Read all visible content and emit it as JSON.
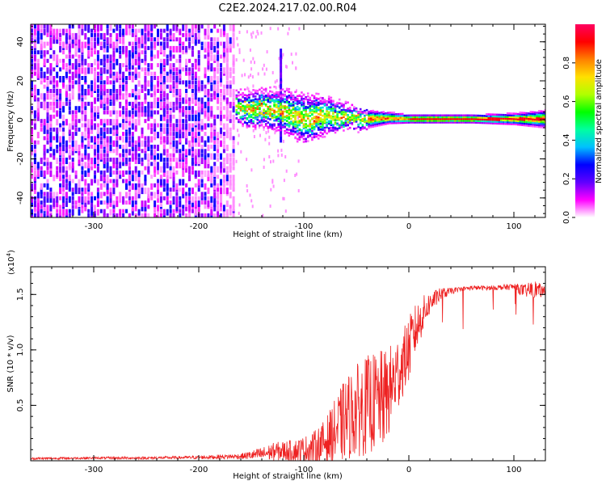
{
  "figure_title": "C2E2.2024.217.02.00.R04",
  "chart_data": [
    {
      "type": "heatmap",
      "title": "C2E2.2024.217.02.00.R04",
      "xlabel": "Height of straight line (km)",
      "ylabel": "Frequency (Hz)",
      "xlim": [
        -360,
        130
      ],
      "ylim": [
        -50,
        49
      ],
      "x_ticks": [
        -300,
        -200,
        -100,
        0,
        100
      ],
      "x_tick_labels": [
        "-300",
        "-200",
        "-100",
        "0",
        "100"
      ],
      "y_ticks": [
        -40,
        -20,
        0,
        20,
        40
      ],
      "y_tick_labels": [
        "-40",
        "-20",
        "0",
        "20",
        "40"
      ],
      "noise_region_x": [
        -360,
        -165
      ],
      "signal_ridge": {
        "x": [
          -165,
          -150,
          -140,
          -120,
          -100,
          -80,
          -60,
          -40,
          -20,
          0,
          20,
          60,
          100,
          130
        ],
        "frequency": [
          7,
          6,
          7,
          5,
          1,
          3,
          2,
          1,
          1.5,
          1,
          1,
          1,
          1,
          1
        ],
        "spread_hz": [
          5,
          6,
          6,
          7,
          8,
          6,
          4,
          3,
          2,
          1.5,
          1.5,
          1.5,
          2,
          3
        ]
      },
      "vertical_streak": {
        "x": -123,
        "frequency_range": [
          -10,
          38
        ]
      },
      "colorbar": {
        "label": "Normalized spectral amplitude",
        "range": [
          0,
          1
        ],
        "ticks": [
          0.0,
          0.2,
          0.4,
          0.6,
          0.8
        ],
        "tick_labels": [
          "0.0",
          "0.2",
          "0.4",
          "0.6",
          "0.8"
        ],
        "colors": [
          "#ffffff",
          "#ff00ff",
          "#6000ff",
          "#0000ff",
          "#00c0ff",
          "#00ffa0",
          "#00ff00",
          "#b0ff00",
          "#ffe000",
          "#ff8000",
          "#ff0000",
          "#ff0060"
        ]
      }
    },
    {
      "type": "line",
      "xlabel": "Height of straight line (km)",
      "ylabel": "SNR (10 * v/v)",
      "y_multiplier_label": "(x10",
      "y_multiplier_exp": "4",
      "y_multiplier_close": ")",
      "xlim": [
        -360,
        130
      ],
      "ylim": [
        0,
        17500
      ],
      "x_ticks": [
        -300,
        -200,
        -100,
        0,
        100
      ],
      "x_tick_labels": [
        "-300",
        "-200",
        "-100",
        "0",
        "100"
      ],
      "y_ticks": [
        5000,
        10000,
        15000
      ],
      "y_tick_labels": [
        "0.5",
        "1.0",
        "1.5"
      ],
      "line_color": "#ee2222",
      "series": [
        {
          "name": "SNR",
          "x": [
            -360,
            -300,
            -250,
            -200,
            -160,
            -140,
            -130,
            -120,
            -110,
            -100,
            -90,
            -80,
            -70,
            -60,
            -50,
            -40,
            -30,
            -25,
            -20,
            -15,
            -10,
            -5,
            0,
            5,
            10,
            15,
            20,
            25,
            30,
            40,
            50,
            60,
            80,
            100,
            110,
            120,
            130
          ],
          "y": [
            200,
            250,
            250,
            300,
            400,
            600,
            800,
            900,
            900,
            1000,
            1200,
            1700,
            2600,
            3800,
            4500,
            5000,
            5400,
            5500,
            6000,
            7000,
            8000,
            9000,
            10000,
            11500,
            12500,
            13500,
            14200,
            14600,
            15000,
            15300,
            15500,
            15600,
            15600,
            15700,
            15300,
            15500,
            15200
          ],
          "noise_amplitude": [
            100,
            100,
            120,
            150,
            250,
            600,
            800,
            900,
            1000,
            1200,
            1500,
            2000,
            3000,
            3800,
            4200,
            4500,
            4500,
            4500,
            4200,
            3800,
            3500,
            3000,
            3000,
            2500,
            2000,
            1500,
            1000,
            800,
            600,
            300,
            200,
            200,
            200,
            300,
            600,
            800,
            400
          ]
        }
      ]
    }
  ]
}
